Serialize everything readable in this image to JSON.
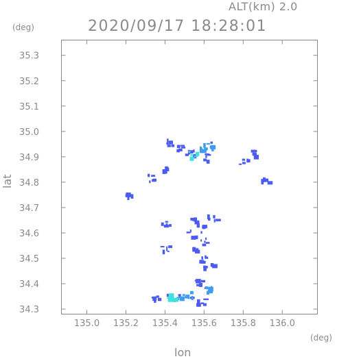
{
  "header": {
    "altitude_label": "ALT(km) 2.0",
    "timestamp": "2020/09/17 18:28:01"
  },
  "axes": {
    "y_unit": "(deg)",
    "x_unit": "(deg)",
    "y_label": "lat",
    "x_label": "lon"
  },
  "chart_data": {
    "type": "heatmap",
    "xlabel": "lon",
    "ylabel": "lat",
    "xlim": [
      134.87,
      136.18
    ],
    "ylim": [
      34.28,
      35.36
    ],
    "x_ticks": [
      "135.0",
      "135.2",
      "135.4",
      "135.6",
      "135.8",
      "136.0"
    ],
    "y_ticks": [
      "34.3",
      "34.4",
      "34.5",
      "34.6",
      "34.7",
      "34.8",
      "34.9",
      "35.0",
      "35.1",
      "35.2",
      "35.3"
    ],
    "grid": false,
    "colors": {
      "weak": "#4d5cf0",
      "moderate": "#3e9cf2",
      "strong": "#40e0e0"
    },
    "cells": [
      {
        "lon": 135.48,
        "lat": 34.94,
        "level": "weak"
      },
      {
        "lon": 135.52,
        "lat": 34.92,
        "level": "weak"
      },
      {
        "lon": 135.58,
        "lat": 34.93,
        "level": "moderate"
      },
      {
        "lon": 135.62,
        "lat": 34.95,
        "level": "moderate"
      },
      {
        "lon": 135.54,
        "lat": 34.91,
        "level": "strong"
      },
      {
        "lon": 135.62,
        "lat": 34.9,
        "level": "weak"
      },
      {
        "lon": 135.43,
        "lat": 34.96,
        "level": "weak"
      },
      {
        "lon": 135.38,
        "lat": 34.86,
        "level": "weak"
      },
      {
        "lon": 135.32,
        "lat": 34.82,
        "level": "weak"
      },
      {
        "lon": 135.22,
        "lat": 34.75,
        "level": "weak"
      },
      {
        "lon": 135.8,
        "lat": 34.88,
        "level": "weak"
      },
      {
        "lon": 135.86,
        "lat": 34.92,
        "level": "weak"
      },
      {
        "lon": 135.91,
        "lat": 34.81,
        "level": "weak"
      },
      {
        "lon": 135.55,
        "lat": 34.65,
        "level": "weak"
      },
      {
        "lon": 135.59,
        "lat": 34.62,
        "level": "weak"
      },
      {
        "lon": 135.53,
        "lat": 34.6,
        "level": "weak"
      },
      {
        "lon": 135.6,
        "lat": 34.57,
        "level": "weak"
      },
      {
        "lon": 135.56,
        "lat": 34.54,
        "level": "weak"
      },
      {
        "lon": 135.59,
        "lat": 34.5,
        "level": "weak"
      },
      {
        "lon": 135.62,
        "lat": 34.47,
        "level": "weak"
      },
      {
        "lon": 135.4,
        "lat": 34.64,
        "level": "weak"
      },
      {
        "lon": 135.4,
        "lat": 34.54,
        "level": "weak"
      },
      {
        "lon": 135.64,
        "lat": 34.66,
        "level": "weak"
      },
      {
        "lon": 135.57,
        "lat": 34.41,
        "level": "weak"
      },
      {
        "lon": 135.61,
        "lat": 34.38,
        "level": "moderate"
      },
      {
        "lon": 135.48,
        "lat": 34.35,
        "level": "moderate"
      },
      {
        "lon": 135.43,
        "lat": 34.35,
        "level": "strong"
      },
      {
        "lon": 135.52,
        "lat": 34.36,
        "level": "moderate"
      },
      {
        "lon": 135.35,
        "lat": 34.34,
        "level": "weak"
      },
      {
        "lon": 135.58,
        "lat": 34.33,
        "level": "weak"
      }
    ]
  }
}
